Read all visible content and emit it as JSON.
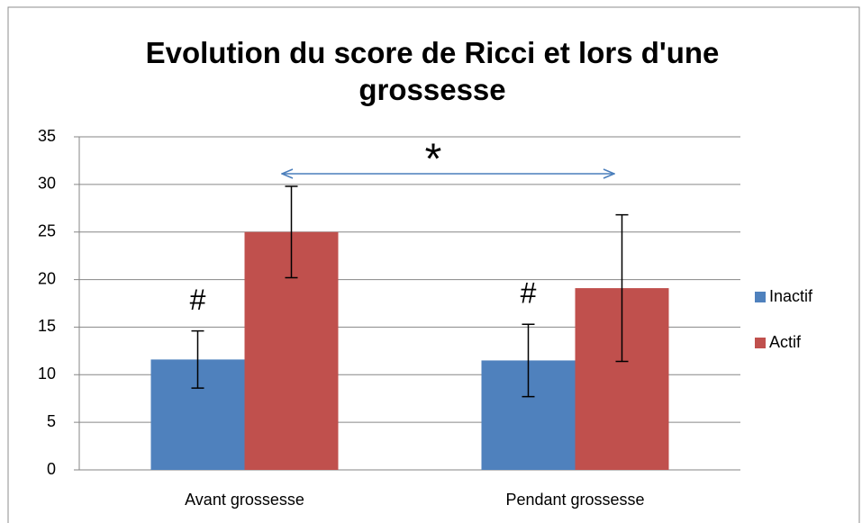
{
  "chart_data": {
    "type": "bar",
    "title": "Evolution du score de Ricci et lors d'une grossesse",
    "categories": [
      "Avant grossesse",
      "Pendant grossesse"
    ],
    "series": [
      {
        "name": "Inactif",
        "color": "#4f81bd",
        "values": [
          11.6,
          11.5
        ],
        "errors": [
          3.0,
          3.8
        ]
      },
      {
        "name": "Actif",
        "color": "#c0504d",
        "values": [
          25,
          19.1
        ],
        "errors": [
          4.8,
          7.7
        ]
      }
    ],
    "annotations": [
      "#",
      "#",
      "*"
    ],
    "ylim": [
      0,
      35
    ],
    "yticks": [
      0,
      5,
      10,
      15,
      20,
      25,
      30,
      35
    ],
    "grid": true,
    "legend": "right"
  }
}
